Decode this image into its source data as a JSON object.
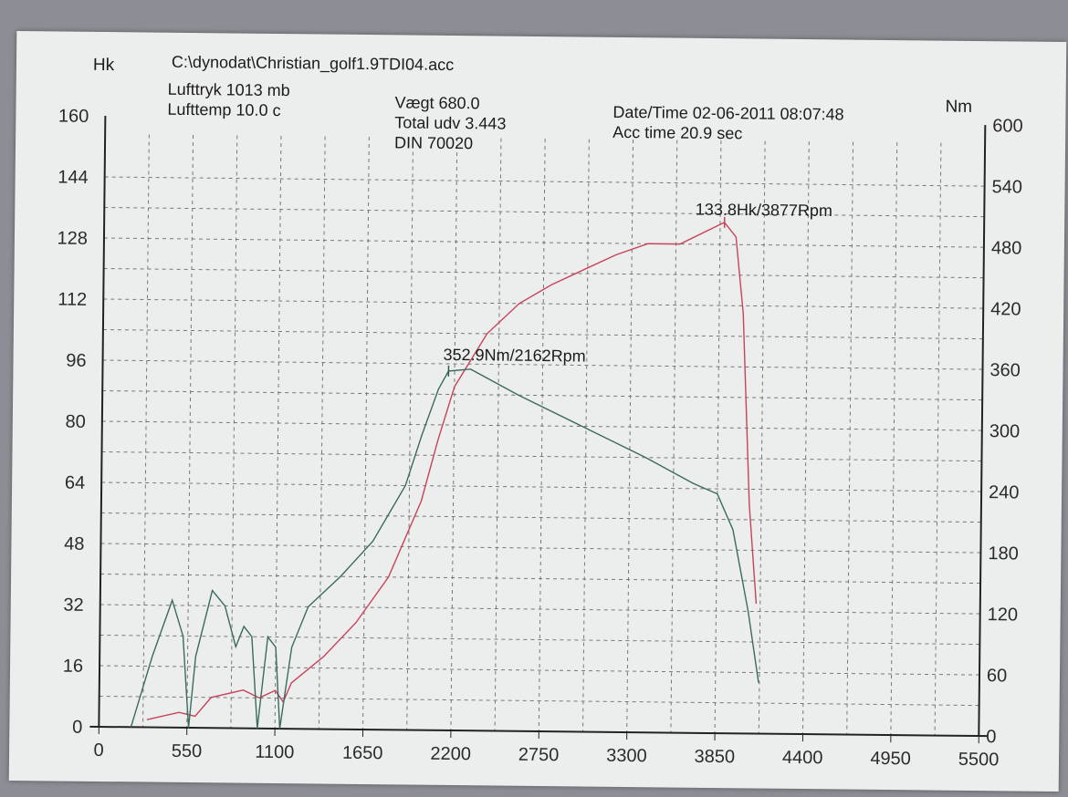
{
  "header": {
    "file": "C:\\dynodat\\Christian_golf1.9TDI04.acc",
    "lufttryk": "Lufttryk  1013 mb",
    "lufttemp": "Lufttemp  10.0 c",
    "vaegt": "Vægt    680.0",
    "total_udv": "Total udv 3.443",
    "din": "DIN 70020",
    "datetime": "Date/Time  02-06-2011 08:07:48",
    "acc_time": "Acc time  20.9 sec"
  },
  "chart_data": {
    "type": "line",
    "xlabel": "",
    "ylabel_left": "Hk",
    "ylabel_right": "Nm",
    "xlim": [
      0,
      5500
    ],
    "ylim_left": [
      0,
      160
    ],
    "ylim_right": [
      0,
      600
    ],
    "x_ticks": [
      0,
      550,
      1100,
      1650,
      2200,
      2750,
      3300,
      3850,
      4400,
      4950,
      5500
    ],
    "y_ticks_left": [
      0,
      16,
      32,
      48,
      64,
      80,
      96,
      112,
      128,
      144,
      160
    ],
    "y_ticks_right": [
      0,
      60,
      120,
      180,
      240,
      300,
      360,
      420,
      480,
      540,
      600
    ],
    "grid": true,
    "series": [
      {
        "axis": "left",
        "color": "#c8425a",
        "x": [
          300,
          500,
          600,
          700,
          900,
          1000,
          1100,
          1150,
          1200,
          1400,
          1600,
          1800,
          2000,
          2100,
          2200,
          2400,
          2600,
          2800,
          3000,
          3200,
          3400,
          3600,
          3877,
          3950,
          4000,
          4050,
          4100
        ],
        "y": [
          2,
          4,
          3,
          8,
          10,
          8,
          10,
          7,
          12,
          19,
          28,
          40,
          60,
          76,
          90,
          104,
          112,
          117,
          121,
          125,
          128,
          128,
          133.8,
          130,
          110,
          60,
          34
        ]
      },
      {
        "axis": "right",
        "color": "#3a6a60",
        "x": [
          200,
          330,
          450,
          520,
          560,
          600,
          700,
          780,
          850,
          900,
          950,
          990,
          1050,
          1100,
          1130,
          1200,
          1300,
          1500,
          1700,
          1900,
          2000,
          2100,
          2162,
          2300,
          2600,
          3000,
          3400,
          3700,
          3850,
          3950,
          4050,
          4120
        ],
        "y": [
          0,
          70,
          125,
          90,
          0,
          70,
          135,
          120,
          80,
          100,
          90,
          0,
          90,
          80,
          0,
          80,
          120,
          150,
          185,
          240,
          290,
          335,
          352.9,
          355,
          330,
          300,
          270,
          245,
          235,
          200,
          120,
          50
        ]
      }
    ],
    "annotations": [
      {
        "text": "133.8Hk/3877Rpm",
        "x": 3877,
        "y": 133.8,
        "axis": "left",
        "color": "#c8425a"
      },
      {
        "text": "352.9Nm/2162Rpm",
        "x": 2162,
        "y": 352.9,
        "axis": "right",
        "color": "#2f5a52"
      }
    ]
  }
}
